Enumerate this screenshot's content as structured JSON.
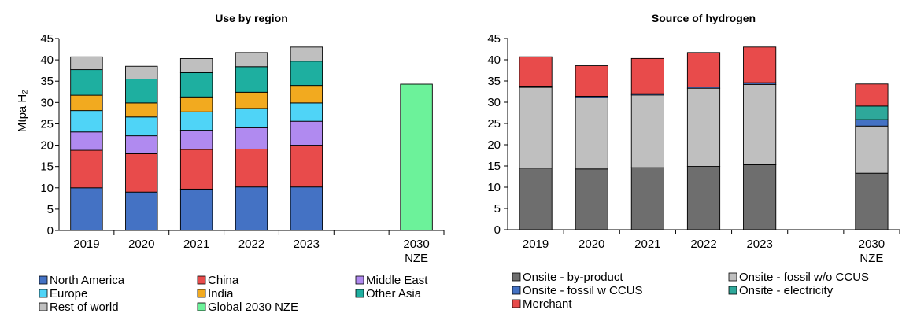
{
  "chart_data": [
    {
      "type": "bar",
      "stacked": true,
      "title": "Use by region",
      "ylabel": "Mtpa H₂",
      "ylim": [
        0,
        45
      ],
      "yticks": [
        0,
        5,
        10,
        15,
        20,
        25,
        30,
        35,
        40,
        45
      ],
      "categories": [
        "2019",
        "2020",
        "2021",
        "2022",
        "2023",
        "",
        "2030\nNZE"
      ],
      "category_labels": [
        [
          "2019"
        ],
        [
          "2020"
        ],
        [
          "2021"
        ],
        [
          "2022"
        ],
        [
          "2023"
        ],
        [
          ""
        ],
        [
          "2030",
          "NZE"
        ]
      ],
      "series": [
        {
          "name": "North America",
          "color": "#4472C4",
          "values": [
            10,
            9,
            9.7,
            10.2,
            10.2,
            null,
            null
          ]
        },
        {
          "name": "China",
          "color": "#E84B4B",
          "values": [
            8.8,
            9,
            9.3,
            8.9,
            9.8,
            null,
            null
          ]
        },
        {
          "name": "Middle East",
          "color": "#B08AF0",
          "values": [
            4.3,
            4.2,
            4.5,
            5,
            5.6,
            null,
            null
          ]
        },
        {
          "name": "Europe",
          "color": "#4FD4F7",
          "values": [
            5,
            4.4,
            4.3,
            4.5,
            4.3,
            null,
            null
          ]
        },
        {
          "name": "India",
          "color": "#F2AA1F",
          "values": [
            3.6,
            3.3,
            3.5,
            3.8,
            4.1,
            null,
            null
          ]
        },
        {
          "name": "Other Asia",
          "color": "#1EAFA0",
          "values": [
            6,
            5.6,
            5.7,
            6,
            5.7,
            null,
            null
          ]
        },
        {
          "name": "Rest of world",
          "color": "#BFBFBF",
          "values": [
            3,
            3,
            3.3,
            3.3,
            3.3,
            null,
            null
          ]
        },
        {
          "name": "Global 2030 NZE",
          "color": "#6CF29A",
          "values": [
            null,
            null,
            null,
            null,
            null,
            null,
            34.3
          ]
        }
      ],
      "legend": {
        "position": "bottom",
        "rows": [
          [
            "North America",
            "China",
            "Middle East"
          ],
          [
            "Europe",
            "India",
            "Other Asia"
          ],
          [
            "Rest of world",
            "Global 2030 NZE"
          ]
        ]
      },
      "grid": false
    },
    {
      "type": "bar",
      "stacked": true,
      "title": "Source of hydrogen",
      "ylabel": "",
      "ylim": [
        0,
        45
      ],
      "yticks": [
        0,
        5,
        10,
        15,
        20,
        25,
        30,
        35,
        40,
        45
      ],
      "categories": [
        "2019",
        "2020",
        "2021",
        "2022",
        "2023",
        "",
        "2030\nNZE"
      ],
      "category_labels": [
        [
          "2019"
        ],
        [
          "2020"
        ],
        [
          "2021"
        ],
        [
          "2022"
        ],
        [
          "2023"
        ],
        [
          ""
        ],
        [
          "2030",
          "NZE"
        ]
      ],
      "series": [
        {
          "name": "Onsite - by-product",
          "color": "#6E6E6E",
          "values": [
            14.5,
            14.3,
            14.6,
            14.9,
            15.3,
            null,
            13.3
          ]
        },
        {
          "name": "Onsite - fossil w/o CCUS",
          "color": "#BFBFBF",
          "values": [
            19,
            16.8,
            17.1,
            18.4,
            18.9,
            null,
            11.1
          ]
        },
        {
          "name": "Onsite - fossil w CCUS",
          "color": "#4472C4",
          "values": [
            0.3,
            0.3,
            0.3,
            0.3,
            0.4,
            null,
            1.5
          ]
        },
        {
          "name": "Onsite - electricity",
          "color": "#2EA89A",
          "values": [
            0,
            0,
            0,
            0,
            0,
            null,
            3.2
          ]
        },
        {
          "name": "Merchant",
          "color": "#E84B4B",
          "values": [
            6.9,
            7.2,
            8.3,
            8.1,
            8.4,
            null,
            5.2
          ]
        }
      ],
      "legend": {
        "position": "bottom",
        "rows": [
          [
            "Onsite - by-product",
            "Onsite - fossil w/o CCUS"
          ],
          [
            "Onsite - fossil w CCUS",
            "Onsite - electricity"
          ],
          [
            "Merchant"
          ]
        ]
      },
      "grid": false
    }
  ]
}
